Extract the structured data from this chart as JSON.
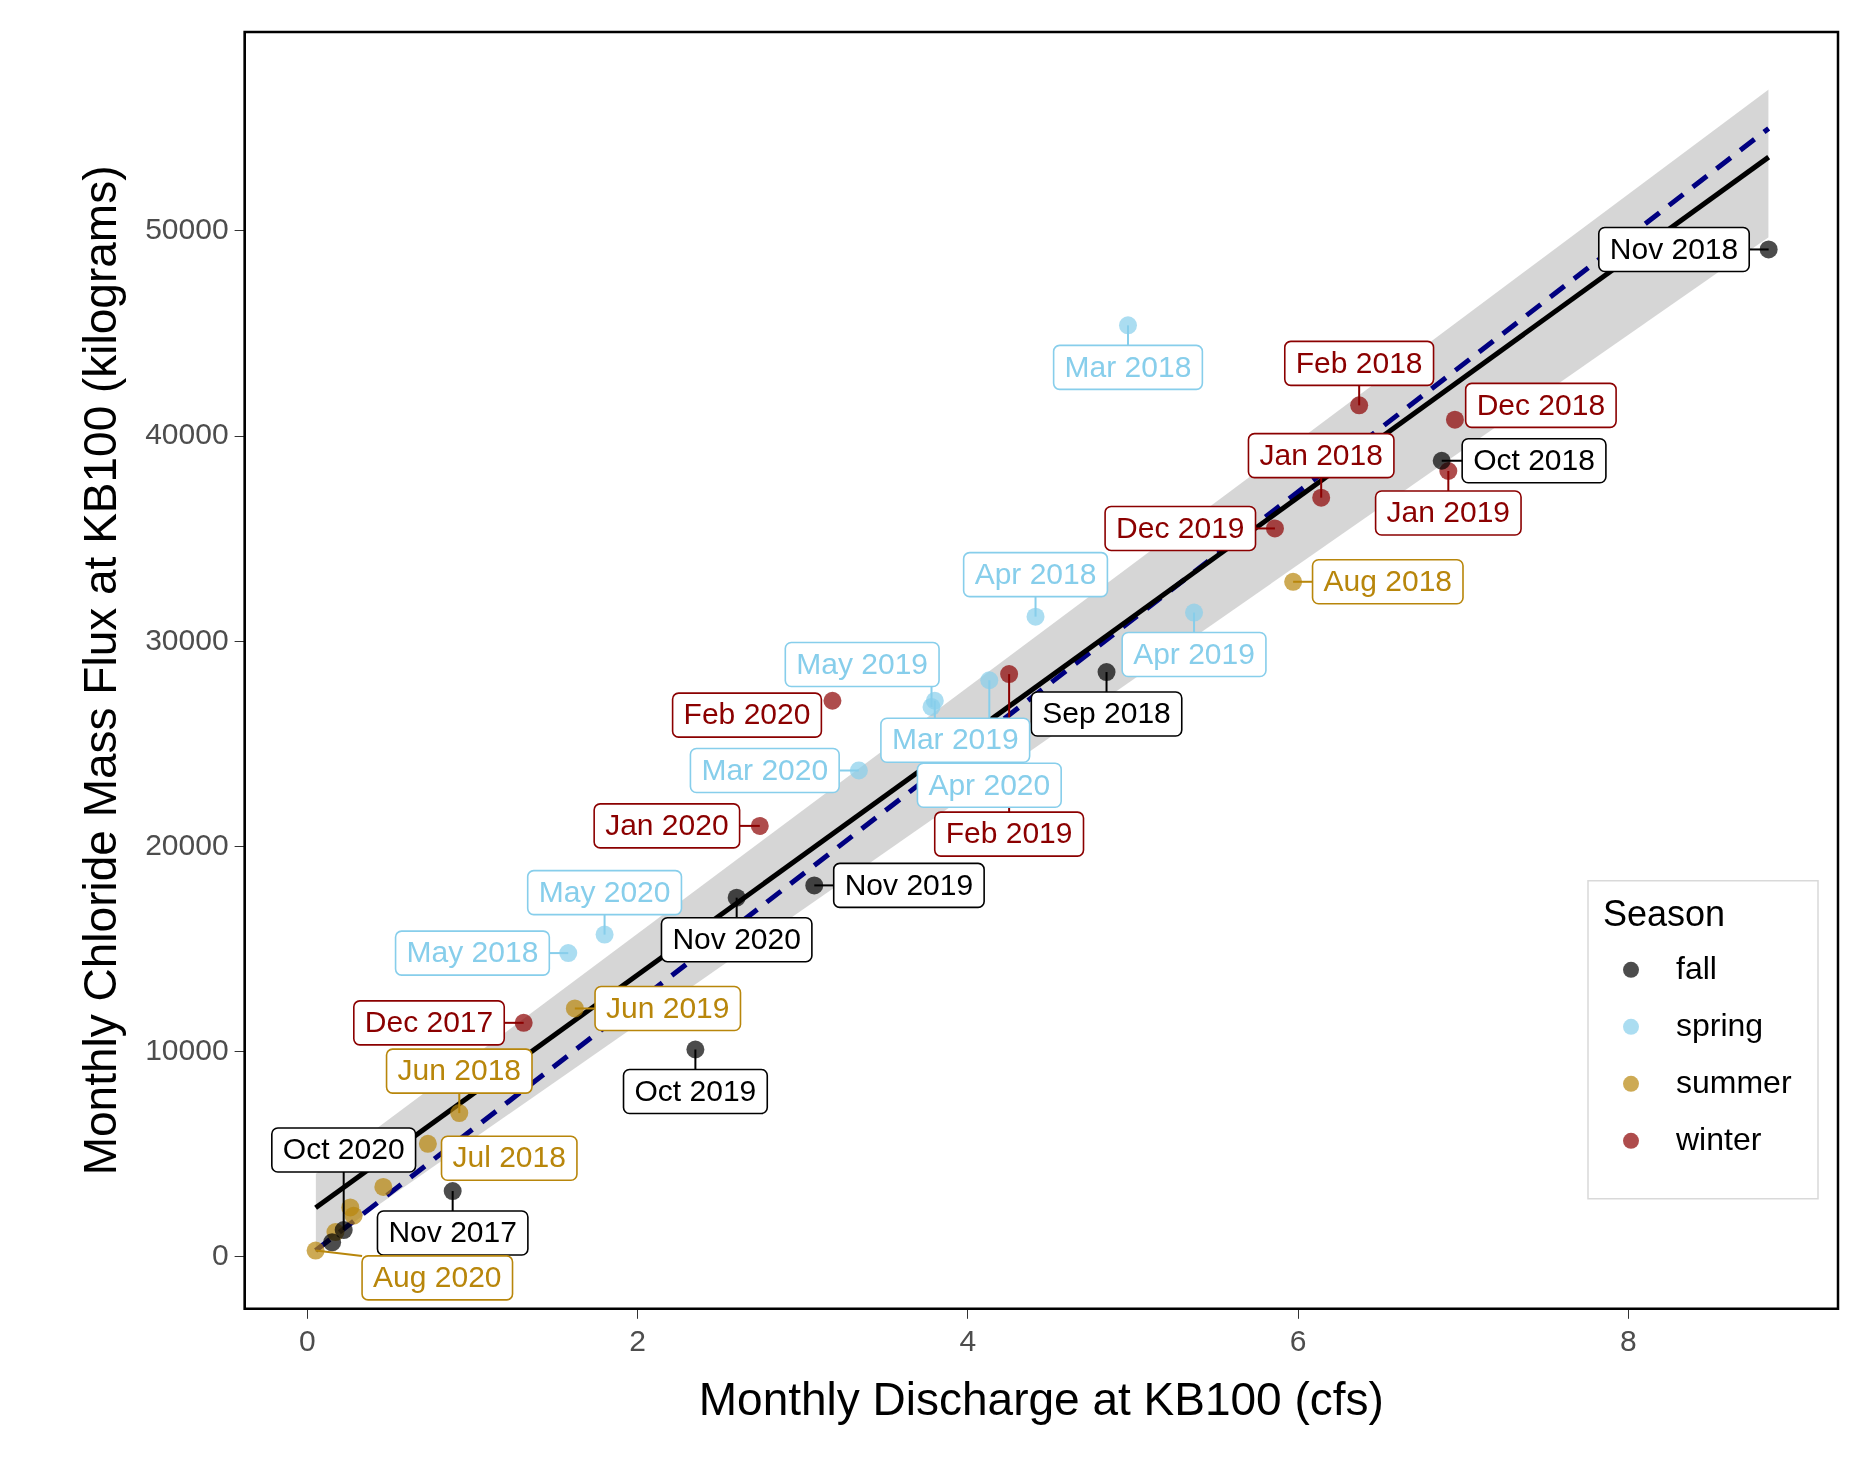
{
  "chart_data": {
    "type": "scatter",
    "xlabel": "Monthly Discharge at KB100 (cfs)",
    "ylabel": "Monthly Chloride Mass Flux at KB100 (kilograms)",
    "legend_title": "Season",
    "legend": "bottom right",
    "grid": false,
    "marker": "circle",
    "xlim": [
      -0.38,
      9.27
    ],
    "xticks": [
      0,
      2,
      4,
      6,
      8
    ],
    "ylim": [
      -2540,
      59700
    ],
    "yticks": [
      0,
      10000,
      20000,
      30000,
      40000,
      50000
    ],
    "series": [
      {
        "name": "fall",
        "color": "#000000",
        "x": [
          8.85,
          6.87,
          4.84,
          3.07,
          2.35,
          0.88,
          2.6,
          0.22,
          0.15
        ],
        "values": [
          49100,
          38800,
          28500,
          18100,
          10100,
          3200,
          17500,
          1300,
          700
        ],
        "value_labels": [
          "Nov 2018",
          "Oct 2018",
          "Sep 2018",
          "Nov 2019",
          "Oct 2019",
          "Nov 2017",
          "Nov 2020",
          "Oct 2020",
          null
        ]
      },
      {
        "name": "spring",
        "color": "#87ceeb",
        "x": [
          4.97,
          4.41,
          5.37,
          3.8,
          3.78,
          4.13,
          3.34,
          1.8,
          1.58
        ],
        "values": [
          45400,
          31200,
          31400,
          27100,
          26800,
          28100,
          23700,
          15700,
          14800
        ],
        "value_labels": [
          "Mar 2018",
          "Apr 2018",
          "Apr 2019",
          "Mar 2019",
          "May 2019",
          "Apr 2020",
          "Mar 2020",
          "May 2020",
          "May 2018"
        ]
      },
      {
        "name": "summer",
        "color": "#b8860b",
        "x": [
          5.97,
          1.62,
          0.92,
          0.73,
          0.05,
          0.46,
          0.26,
          0.28,
          0.17
        ],
        "values": [
          32900,
          12100,
          7000,
          5500,
          300,
          3400,
          2400,
          2000,
          1200
        ],
        "value_labels": [
          "Aug 2018",
          "Jun 2019",
          "Jun 2018",
          "Jul 2018",
          "Aug 2020",
          null,
          null,
          null,
          null
        ]
      },
      {
        "name": "winter",
        "color": "#8b0000",
        "x": [
          6.37,
          6.95,
          6.91,
          6.14,
          5.86,
          4.25,
          3.18,
          2.74,
          1.31
        ],
        "values": [
          41500,
          40800,
          38300,
          37000,
          35500,
          28400,
          27100,
          21000,
          11400
        ],
        "value_labels": [
          "Feb 2018",
          "Dec 2018",
          "Jan 2019",
          "Jan 2018",
          "Dec 2019",
          "Feb 2019",
          "Feb 2020",
          "Jan 2020",
          "Dec 2017"
        ]
      },
      {
        "type": "line",
        "color": "#000000",
        "line_style": "solid",
        "marker": "none",
        "x": [
          0.05,
          8.85
        ],
        "values": [
          2390,
          53600
        ],
        "lower": [
          390,
          49700
        ],
        "upper": [
          4030,
          56900
        ]
      },
      {
        "type": "line",
        "color": "#000080",
        "line_style": "dashed",
        "marker": "none",
        "x": [
          0.05,
          8.85
        ],
        "values": [
          300,
          55000
        ]
      }
    ]
  }
}
